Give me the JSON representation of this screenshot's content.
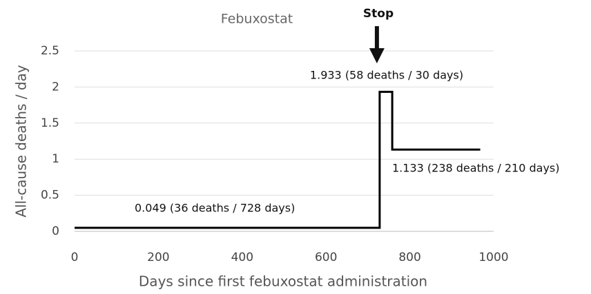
{
  "chart_data": {
    "type": "line",
    "title": "Febuxostat",
    "xlabel": "Days since first febuxostat administration",
    "ylabel": "All-cause deaths / day",
    "x": [
      0,
      728,
      728,
      758,
      758,
      968
    ],
    "values": [
      0.049,
      0.049,
      1.933,
      1.933,
      1.133,
      1.133
    ],
    "color": "#000000",
    "xlim": [
      0,
      1000
    ],
    "xticks": [
      0,
      200,
      400,
      600,
      800,
      1000
    ],
    "ylim": [
      0,
      2.5
    ],
    "yticks": [
      0,
      0.5,
      1,
      1.5,
      2,
      2.5
    ],
    "grid": true,
    "annotations": [
      "Stop",
      "1.933 (58 deaths / 30 days)",
      "1.133 (238 deaths / 210 days)",
      "0.049 (36 deaths / 728 days)"
    ]
  }
}
